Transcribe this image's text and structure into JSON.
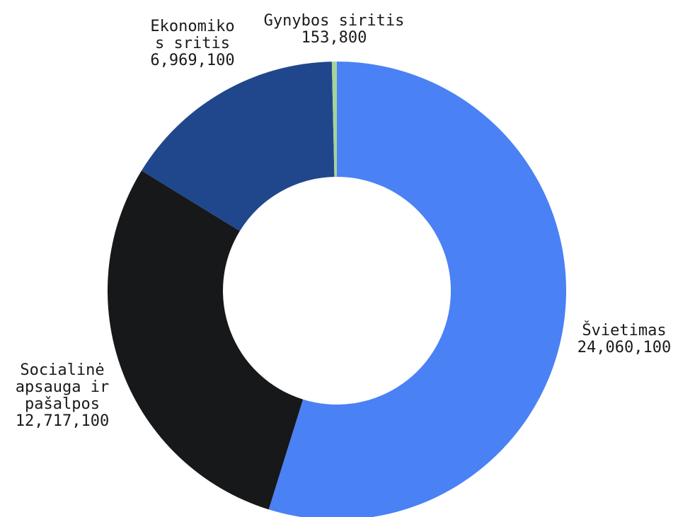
{
  "chart_data": {
    "type": "pie",
    "donut": true,
    "categories": [
      "Švietimas",
      "Socialinė apsauga ir pašalpos",
      "Ekonomikos sritis",
      "Gynybos siritis"
    ],
    "values": [
      24060100,
      12717100,
      6969100,
      153800
    ],
    "value_labels": [
      "24,060,100",
      "12,717,100",
      "6,969,100",
      "153,800"
    ],
    "label_lines": [
      [
        "Švietimas"
      ],
      [
        "Socialinė",
        "apsauga ir",
        "pašalpos"
      ],
      [
        "Ekonomiko",
        "s sritis"
      ],
      [
        "Gynybos siritis"
      ]
    ],
    "colors": [
      "#4a81f4",
      "#16181a",
      "#20478c",
      "#a7d39b"
    ],
    "legend": "none"
  }
}
